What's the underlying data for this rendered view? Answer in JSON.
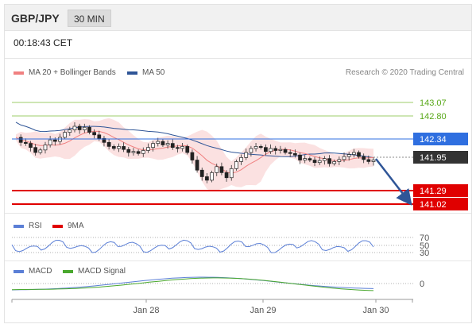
{
  "header": {
    "symbol": "GBP/JPY",
    "timeframe": "30 MIN"
  },
  "timestamp": "00:18:43 CET",
  "legend": {
    "ma20": {
      "label": "MA 20 + Bollinger Bands",
      "color": "#f08080"
    },
    "ma50": {
      "label": "MA 50",
      "color": "#2f5597"
    },
    "rsi": {
      "label": "RSI",
      "color": "#5b7fd6"
    },
    "rsi9ma": {
      "label": "9MA",
      "color": "#e00000"
    },
    "macd": {
      "label": "MACD",
      "color": "#5b7fd6"
    },
    "macd_signal": {
      "label": "MACD Signal",
      "color": "#4aa82e"
    }
  },
  "credit": "Research © 2020 Trading Central",
  "levels": [
    {
      "price": "143.07",
      "kind": "target",
      "color": "#58a818"
    },
    {
      "price": "142.80",
      "kind": "target",
      "color": "#58a818"
    },
    {
      "price": "142.34",
      "kind": "pivot",
      "color": "#2f6fe0"
    },
    {
      "price": "141.95",
      "kind": "last",
      "color": "#333333"
    },
    {
      "price": "141.29",
      "kind": "support",
      "color": "#e00000"
    },
    {
      "price": "141.02",
      "kind": "support",
      "color": "#e00000"
    }
  ],
  "rsi_ticks": [
    "70",
    "50",
    "30"
  ],
  "macd_tick": "0",
  "x_labels": [
    "Jan 28",
    "Jan 29",
    "Jan 30"
  ],
  "chart_data": {
    "type": "candlestick",
    "ylim": [
      140.95,
      143.55
    ],
    "price_series": [
      142.4,
      142.3,
      142.28,
      142.2,
      142.1,
      142.15,
      142.25,
      142.35,
      142.32,
      142.4,
      142.5,
      142.55,
      142.62,
      142.55,
      142.6,
      142.5,
      142.45,
      142.38,
      142.3,
      142.22,
      142.18,
      142.22,
      142.16,
      142.1,
      142.12,
      142.08,
      142.14,
      142.2,
      142.28,
      142.32,
      142.25,
      142.28,
      142.2,
      142.18,
      142.22,
      142.1,
      141.95,
      141.75,
      141.62,
      141.55,
      141.7,
      141.82,
      141.7,
      141.6,
      141.78,
      141.92,
      142.0,
      142.1,
      142.18,
      142.22,
      142.2,
      142.12,
      142.18,
      142.14,
      142.16,
      142.1,
      142.08,
      142.05,
      141.95,
      141.98,
      141.95,
      141.9,
      141.94,
      141.98,
      141.88,
      141.92,
      141.96,
      142.02,
      142.06,
      142.1,
      142.02,
      141.96,
      141.92,
      141.95
    ],
    "last_price": 141.95,
    "arrow": {
      "from": 141.95,
      "to": 141.02,
      "direction": "down"
    }
  }
}
